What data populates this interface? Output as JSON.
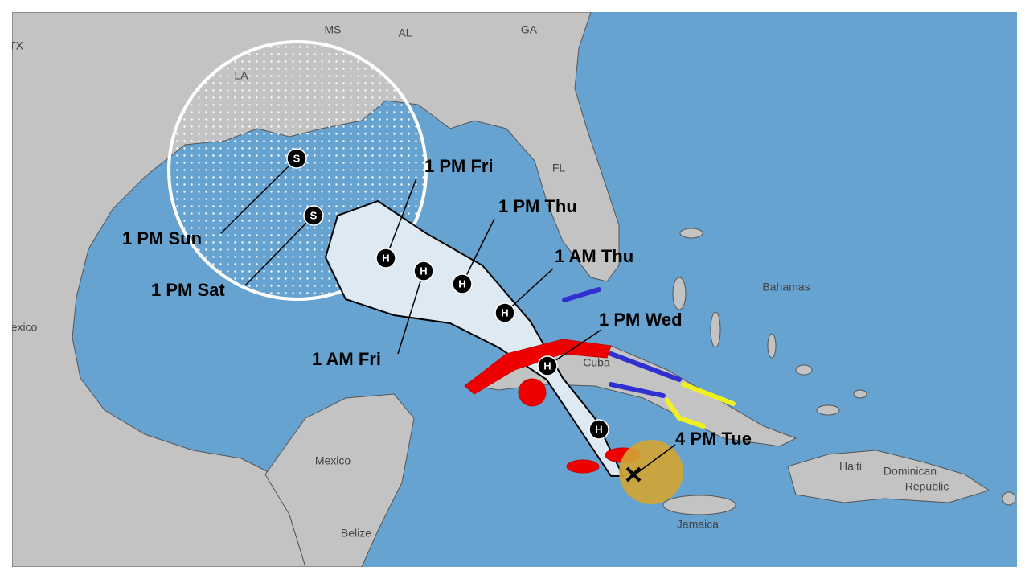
{
  "place_labels": [
    "TX",
    "MS",
    "AL",
    "GA",
    "LA",
    "FL",
    "exico",
    "Bahamas",
    "Cuba",
    "Mexico",
    "Haiti",
    "Dominican",
    "Republic",
    "Jamaica",
    "Belize"
  ],
  "forecast_points": [
    {
      "symbol": "S",
      "label": "1 PM Sun"
    },
    {
      "symbol": "S",
      "label": "1 PM Sat"
    },
    {
      "symbol": "H",
      "label": "1 PM Fri"
    },
    {
      "symbol": "H",
      "label": "1 AM Fri"
    },
    {
      "symbol": "H",
      "label": "1 PM Thu"
    },
    {
      "symbol": "H",
      "label": "1 AM Thu"
    },
    {
      "symbol": "H",
      "label": "1 PM Wed"
    },
    {
      "symbol": "H"
    }
  ],
  "current_position": {
    "label": "4 PM Tue"
  }
}
